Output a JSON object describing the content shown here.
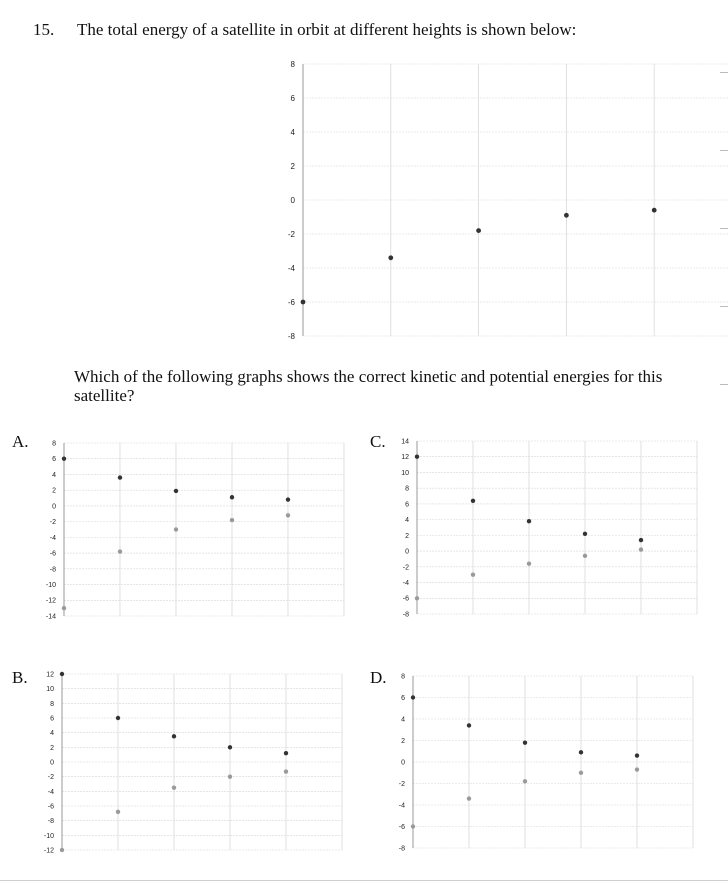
{
  "question": {
    "number": "15.",
    "stem": "The total energy of a satellite in orbit at different heights is shown below:",
    "prompt": "Which of the following graphs shows the correct kinetic and potential energies for this satellite?"
  },
  "colors": {
    "grid": "#d8d8d8",
    "axis": "#999999",
    "point_dark": "#333333",
    "point_light": "#9a9a9a"
  },
  "chart_data": [
    {
      "id": "main",
      "type": "scatter",
      "ylim": [
        -8,
        8
      ],
      "yticks": [
        "8",
        "6",
        "4",
        "2",
        "0",
        "-2",
        "-4",
        "-6",
        "-8"
      ],
      "grid": true,
      "series": [
        {
          "x": [
            0,
            1,
            2,
            3,
            4
          ],
          "y": [
            -6,
            -3.4,
            -1.8,
            -0.9,
            -0.6
          ]
        }
      ]
    },
    {
      "id": "A",
      "label": "A.",
      "type": "scatter",
      "ylim": [
        -14,
        8
      ],
      "yticks": [
        "8",
        "6",
        "4",
        "2",
        "0",
        "-2",
        "-4",
        "-6",
        "-8",
        "-10",
        "-12",
        "-14"
      ],
      "grid": true,
      "series": [
        {
          "x": [
            0,
            1,
            2,
            3,
            4
          ],
          "y": [
            6,
            3.6,
            1.9,
            1.1,
            0.8
          ]
        },
        {
          "x": [
            0,
            1,
            2,
            3,
            4
          ],
          "y": [
            -13,
            -5.8,
            -3,
            -1.8,
            -1.2
          ]
        }
      ]
    },
    {
      "id": "B",
      "label": "B.",
      "type": "scatter",
      "ylim": [
        -12,
        12
      ],
      "yticks": [
        "12",
        "10",
        "8",
        "6",
        "4",
        "2",
        "0",
        "-2",
        "-4",
        "-6",
        "-8",
        "-10",
        "-12"
      ],
      "grid": true,
      "series": [
        {
          "x": [
            0,
            1,
            2,
            3,
            4
          ],
          "y": [
            12,
            6,
            3.5,
            2,
            1.2
          ]
        },
        {
          "x": [
            0,
            1,
            2,
            3,
            4
          ],
          "y": [
            -12,
            -6.8,
            -3.5,
            -2,
            -1.3
          ]
        }
      ]
    },
    {
      "id": "C",
      "label": "C.",
      "type": "scatter",
      "ylim": [
        -8,
        14
      ],
      "yticks": [
        "14",
        "12",
        "10",
        "8",
        "6",
        "4",
        "2",
        "0",
        "-2",
        "-4",
        "-6",
        "-8"
      ],
      "grid": true,
      "series": [
        {
          "x": [
            0,
            1,
            2,
            3,
            4
          ],
          "y": [
            12,
            6.4,
            3.8,
            2.2,
            1.4
          ]
        },
        {
          "x": [
            0,
            1,
            2,
            3,
            4
          ],
          "y": [
            -6,
            -3,
            -1.6,
            -0.6,
            0.2
          ]
        }
      ]
    },
    {
      "id": "D",
      "label": "D.",
      "type": "scatter",
      "ylim": [
        -8,
        8
      ],
      "yticks": [
        "8",
        "6",
        "4",
        "2",
        "0",
        "-2",
        "-4",
        "-6",
        "-8"
      ],
      "grid": true,
      "series": [
        {
          "x": [
            0,
            1,
            2,
            3,
            4
          ],
          "y": [
            6,
            3.4,
            1.8,
            0.9,
            0.6
          ]
        },
        {
          "x": [
            0,
            1,
            2,
            3,
            4
          ],
          "y": [
            -6,
            -3.4,
            -1.8,
            -1,
            -0.7
          ]
        }
      ]
    }
  ]
}
